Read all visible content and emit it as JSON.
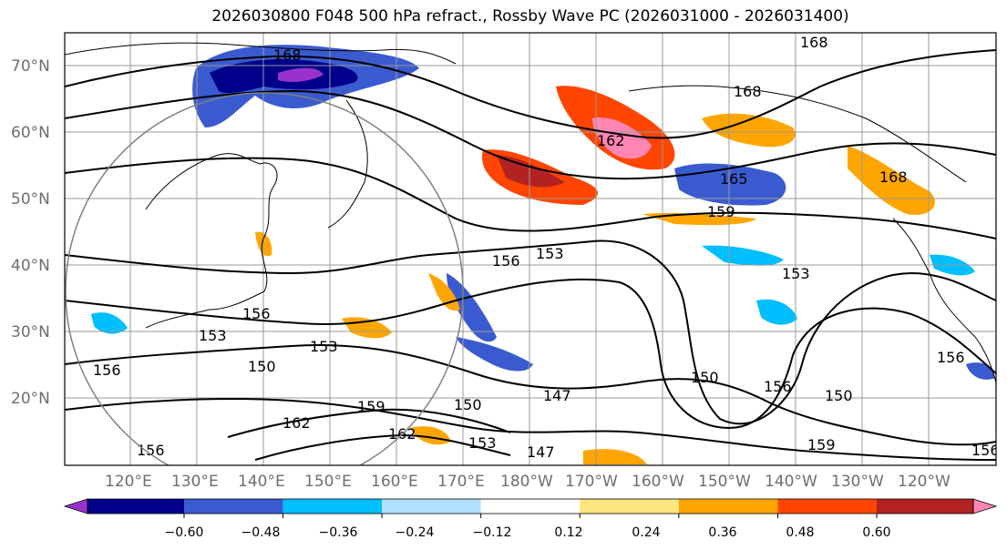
{
  "title": "2026030800 F048 500 hPa refract., Rossby Wave PC (2026031000 - 2026031400)",
  "map": {
    "lat_labels": [
      "70°N",
      "60°N",
      "50°N",
      "40°N",
      "30°N",
      "20°N"
    ],
    "lon_labels": [
      "120°E",
      "130°E",
      "140°E",
      "150°E",
      "160°E",
      "170°E",
      "180°W",
      "170°W",
      "160°W",
      "150°W",
      "140°W",
      "130°W",
      "120°W"
    ],
    "contour_labels": [
      "168",
      "168",
      "168",
      "162",
      "165",
      "168",
      "159",
      "156",
      "153",
      "153",
      "156",
      "153",
      "156",
      "153",
      "150",
      "156",
      "150",
      "147",
      "150",
      "156",
      "150",
      "159",
      "162",
      "159",
      "162",
      "153",
      "147",
      "156",
      "156"
    ]
  },
  "colorbar": {
    "tick_labels": [
      "−0.60",
      "−0.48",
      "−0.36",
      "−0.24",
      "−0.12",
      "0.12",
      "0.24",
      "0.36",
      "0.48",
      "0.60"
    ],
    "colors": [
      "#9932cc",
      "#00008b",
      "#3a5bd0",
      "#00bfff",
      "#b0e0ff",
      "#ffffff",
      "#ffe680",
      "#ffa500",
      "#ff4500",
      "#b22222",
      "#ff85b3"
    ]
  }
}
